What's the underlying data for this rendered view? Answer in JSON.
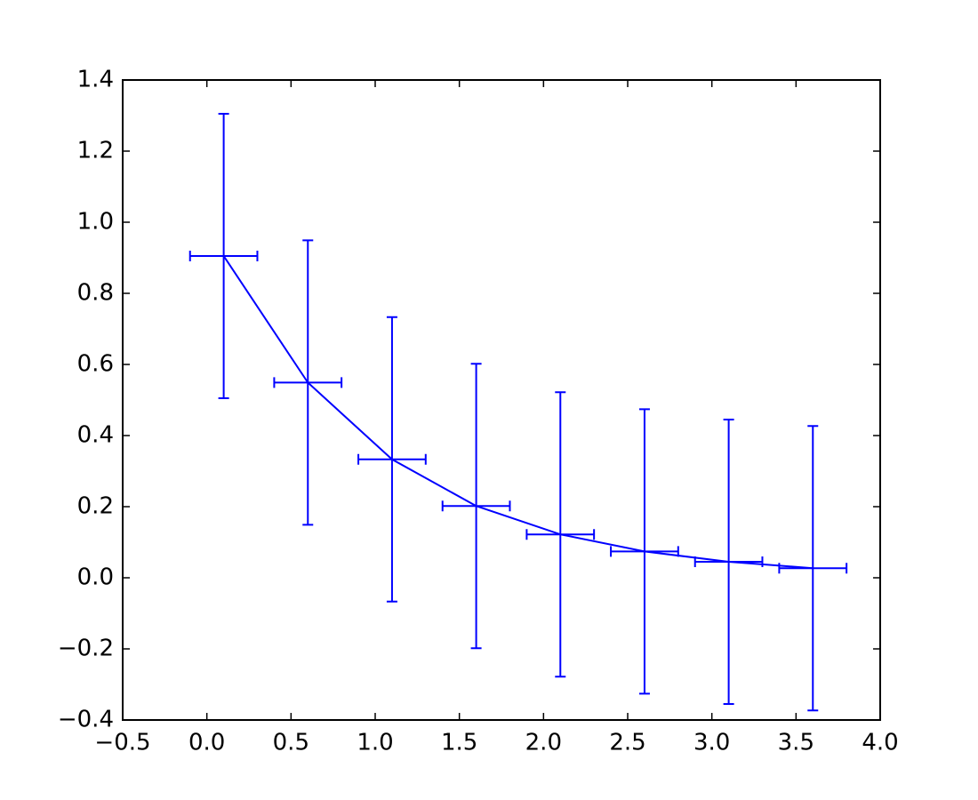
{
  "chart_data": {
    "type": "errorbar",
    "x": [
      0.1,
      0.6,
      1.1,
      1.6,
      2.1,
      2.6,
      3.1,
      3.6
    ],
    "series": [
      {
        "color": "#0000ff",
        "values": [
          0.905,
          0.549,
          0.333,
          0.202,
          0.122,
          0.074,
          0.045,
          0.027
        ]
      }
    ],
    "yerr": 0.4,
    "xerr": 0.2,
    "xlim": [
      -0.5,
      4.0
    ],
    "xticks": [
      {
        "value": -0.5,
        "label": "−0.5"
      },
      {
        "value": 0,
        "label": "0.0"
      },
      0.5,
      {
        "value": 1,
        "label": "1.0"
      },
      1.5,
      {
        "value": 2,
        "label": "2.0"
      },
      2.5,
      {
        "value": 3,
        "label": "3.0"
      },
      3.5,
      {
        "value": 4,
        "label": "4.0"
      }
    ],
    "ylim": [
      -0.4,
      1.4
    ],
    "yticks": [
      {
        "value": -0.4,
        "label": "−0.4"
      },
      {
        "value": -0.2,
        "label": "−0.2"
      },
      {
        "value": 0,
        "label": "0.0"
      },
      0.2,
      0.4,
      0.6,
      0.8,
      {
        "value": 1,
        "label": "1.0"
      },
      1.2,
      1.4
    ],
    "grid": false
  }
}
